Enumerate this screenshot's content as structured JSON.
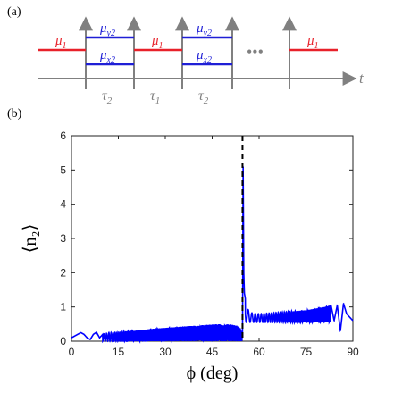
{
  "panel_a": {
    "label": "(a)",
    "mu1": "μ",
    "mu1_sub": "1",
    "muy2": "μ",
    "muy2_sub": "y2",
    "mux2": "μ",
    "mux2_sub": "x2",
    "ellipsis": "•••",
    "time_axis": "t",
    "tau2": "τ",
    "tau2_sub": "2",
    "tau1": "τ",
    "tau1_sub": "1",
    "colors": {
      "red": "#e8212a",
      "blue": "#1f1fd6",
      "gray": "#808080"
    }
  },
  "panel_b": {
    "label": "(b)"
  },
  "chart_data": {
    "type": "line",
    "xlabel": "ϕ (deg)",
    "ylabel": "⟨n₂⟩",
    "xlim": [
      0,
      90
    ],
    "ylim": [
      0,
      6
    ],
    "xticks": [
      "0",
      "15",
      "30",
      "45",
      "60",
      "75",
      "90"
    ],
    "yticks": [
      "0",
      "1",
      "2",
      "3",
      "4",
      "5",
      "6"
    ],
    "grid": false,
    "series": [
      {
        "color": "#0000ff",
        "x": [
          0,
          1,
          2,
          3,
          4,
          5,
          6,
          7,
          8,
          9,
          10,
          12,
          15,
          18,
          21,
          24,
          27,
          30,
          33,
          36,
          39,
          42,
          45,
          48,
          51,
          53,
          54,
          54.5,
          54.7,
          54.9,
          55.1,
          55.3,
          55.5,
          56,
          57,
          58,
          60,
          63,
          66,
          69,
          72,
          75,
          78,
          81,
          83,
          84,
          85,
          86,
          87,
          88,
          89,
          90
        ],
        "values": [
          0.1,
          0.15,
          0.2,
          0.25,
          0.2,
          0.1,
          0.05,
          0.2,
          0.26,
          0.1,
          0.2,
          0.25,
          0.26,
          0.28,
          0.31,
          0.34,
          0.37,
          0.39,
          0.41,
          0.43,
          0.45,
          0.47,
          0.49,
          0.5,
          0.49,
          0.45,
          0.38,
          0.25,
          0.1,
          5.1,
          2.0,
          1.4,
          1.3,
          1.0,
          0.85,
          0.82,
          0.8,
          0.82,
          0.84,
          0.86,
          0.88,
          0.9,
          0.95,
          1.0,
          1.05,
          0.6,
          1.05,
          0.3,
          1.1,
          0.8,
          0.7,
          0.6
        ],
        "oscillation_amplitude_envelope": "dense ripple between baseline and curve"
      }
    ],
    "annotations": [
      {
        "type": "vertical-dashed-line",
        "x": 54.7,
        "color": "#000000"
      }
    ]
  }
}
